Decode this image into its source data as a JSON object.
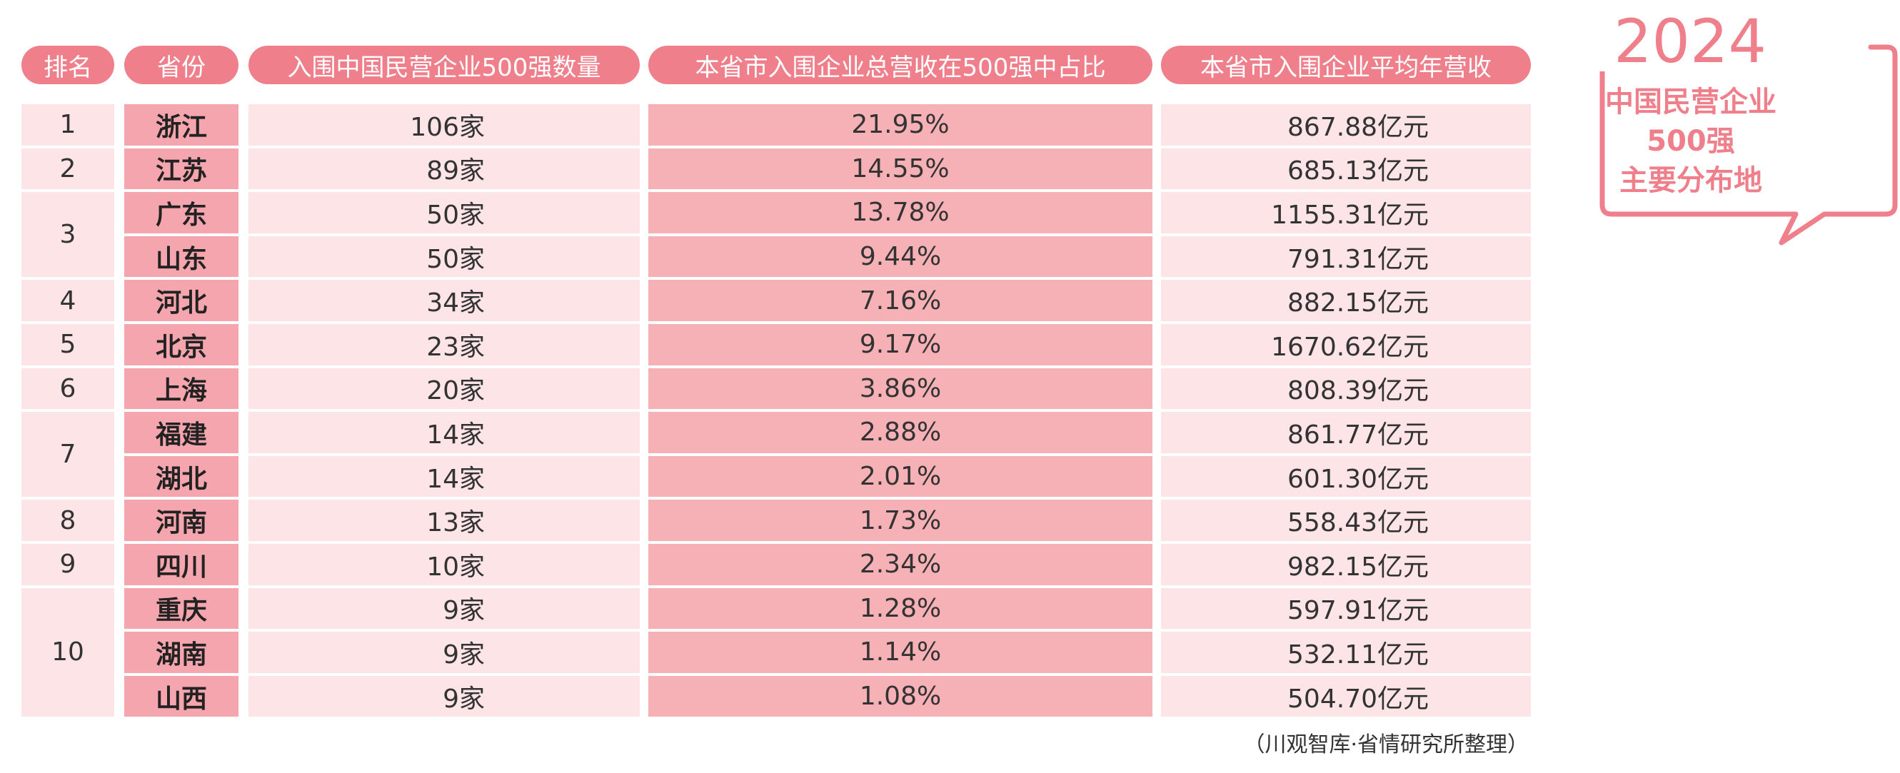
{
  "headers": {
    "rank": "排名",
    "province": "省份",
    "count": "入围中国民营企业500强数量",
    "share": "本省市入围企业总营收在500强中占比",
    "avg": "本省市入围企业平均年营收"
  },
  "callout": {
    "year": "2024",
    "line1": "中国民营企业",
    "line2": "500强",
    "line3": "主要分布地"
  },
  "source": "（川观智库·省情研究所整理）",
  "colors": {
    "accent": "#ee7f8b",
    "light_row": "#fde4e6",
    "province_fill": "#f4a5ad",
    "share_fill": "#f6b1b6"
  },
  "chart_data": {
    "type": "table",
    "columns": [
      "排名",
      "省份",
      "入围中国民营企业500强数量",
      "本省市入围企业总营收在500强中占比",
      "本省市入围企业平均年营收"
    ],
    "rows": [
      {
        "rank": "1",
        "province": "浙江",
        "count": "106家",
        "share": "21.95%",
        "avg": "867.88亿元"
      },
      {
        "rank": "2",
        "province": "江苏",
        "count": "89家",
        "share": "14.55%",
        "avg": "685.13亿元"
      },
      {
        "rank": "3",
        "province": "广东",
        "count": "50家",
        "share": "13.78%",
        "avg": "1155.31亿元"
      },
      {
        "rank": "",
        "province": "山东",
        "count": "50家",
        "share": "9.44%",
        "avg": "791.31亿元"
      },
      {
        "rank": "4",
        "province": "河北",
        "count": "34家",
        "share": "7.16%",
        "avg": "882.15亿元"
      },
      {
        "rank": "5",
        "province": "北京",
        "count": "23家",
        "share": "9.17%",
        "avg": "1670.62亿元"
      },
      {
        "rank": "6",
        "province": "上海",
        "count": "20家",
        "share": "3.86%",
        "avg": "808.39亿元"
      },
      {
        "rank": "7",
        "province": "福建",
        "count": "14家",
        "share": "2.88%",
        "avg": "861.77亿元"
      },
      {
        "rank": "",
        "province": "湖北",
        "count": "14家",
        "share": "2.01%",
        "avg": "601.30亿元"
      },
      {
        "rank": "8",
        "province": "河南",
        "count": "13家",
        "share": "1.73%",
        "avg": "558.43亿元"
      },
      {
        "rank": "9",
        "province": "四川",
        "count": "10家",
        "share": "2.34%",
        "avg": "982.15亿元"
      },
      {
        "rank": "10",
        "province": "重庆",
        "count": "9家",
        "share": "1.28%",
        "avg": "597.91亿元"
      },
      {
        "rank": "",
        "province": "湖南",
        "count": "9家",
        "share": "1.14%",
        "avg": "532.11亿元"
      },
      {
        "rank": "",
        "province": "山西",
        "count": "9家",
        "share": "1.08%",
        "avg": "504.70亿元"
      }
    ],
    "rank_groups": [
      {
        "rank": "1",
        "span": 1
      },
      {
        "rank": "2",
        "span": 1
      },
      {
        "rank": "3",
        "span": 2
      },
      {
        "rank": "4",
        "span": 1
      },
      {
        "rank": "5",
        "span": 1
      },
      {
        "rank": "6",
        "span": 1
      },
      {
        "rank": "7",
        "span": 2
      },
      {
        "rank": "8",
        "span": 1
      },
      {
        "rank": "9",
        "span": 1
      },
      {
        "rank": "10",
        "span": 3
      }
    ]
  }
}
